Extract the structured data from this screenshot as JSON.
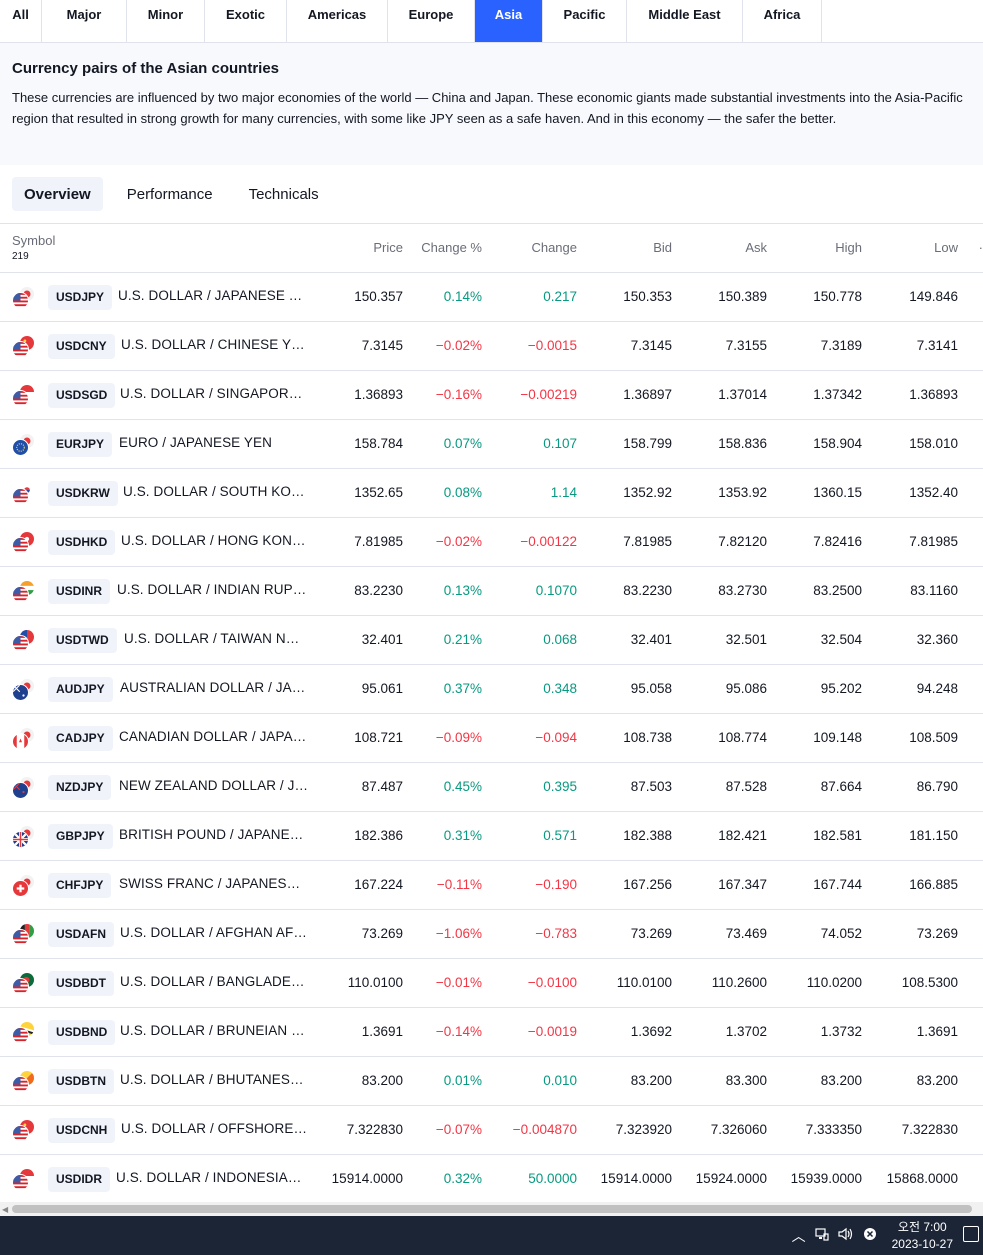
{
  "region_tabs": [
    {
      "label": "All",
      "active": false
    },
    {
      "label": "Major",
      "active": false
    },
    {
      "label": "Minor",
      "active": false
    },
    {
      "label": "Exotic",
      "active": false
    },
    {
      "label": "Americas",
      "active": false
    },
    {
      "label": "Europe",
      "active": false
    },
    {
      "label": "Asia",
      "active": true
    },
    {
      "label": "Pacific",
      "active": false
    },
    {
      "label": "Middle East",
      "active": false
    },
    {
      "label": "Africa",
      "active": false
    }
  ],
  "intro": {
    "title": "Currency pairs of the Asian countries",
    "text": "These currencies are influenced by two major economies of the world — China and Japan. These economic giants made substantial investments into the Asia-Pacific region that resulted in strong growth for many currencies, with some like JPY seen as a safe haven. And in this economy — the safer the better."
  },
  "sub_tabs": [
    {
      "label": "Overview",
      "active": true
    },
    {
      "label": "Performance",
      "active": false
    },
    {
      "label": "Technicals",
      "active": false
    }
  ],
  "table": {
    "headers": {
      "symbol": "Symbol",
      "count": "219",
      "price": "Price",
      "change_pct": "Change %",
      "change": "Change",
      "bid": "Bid",
      "ask": "Ask",
      "high": "High",
      "low": "Low"
    },
    "rows": [
      {
        "ticker": "USDJPY",
        "name": "U.S. DOLLAR / JAPANESE YEN",
        "price": "150.357",
        "change_pct": "0.14%",
        "change": "0.217",
        "bid": "150.353",
        "ask": "150.389",
        "high": "150.778",
        "low": "149.846",
        "dir": "pos",
        "flags": [
          "jp",
          "us"
        ]
      },
      {
        "ticker": "USDCNY",
        "name": "U.S. DOLLAR / CHINESE YUAN",
        "price": "7.3145",
        "change_pct": "−0.02%",
        "change": "−0.0015",
        "bid": "7.3145",
        "ask": "7.3155",
        "high": "7.3189",
        "low": "7.3141",
        "dir": "neg",
        "flags": [
          "cn",
          "us"
        ]
      },
      {
        "ticker": "USDSGD",
        "name": "U.S. DOLLAR / SINGAPORE D...",
        "price": "1.36893",
        "change_pct": "−0.16%",
        "change": "−0.00219",
        "bid": "1.36897",
        "ask": "1.37014",
        "high": "1.37342",
        "low": "1.36893",
        "dir": "neg",
        "flags": [
          "sg",
          "us"
        ]
      },
      {
        "ticker": "EURJPY",
        "name": "EURO / JAPANESE YEN",
        "price": "158.784",
        "change_pct": "0.07%",
        "change": "0.107",
        "bid": "158.799",
        "ask": "158.836",
        "high": "158.904",
        "low": "158.010",
        "dir": "pos",
        "flags": [
          "jp",
          "eu"
        ]
      },
      {
        "ticker": "USDKRW",
        "name": "U.S. DOLLAR / SOUTH KORE...",
        "price": "1352.65",
        "change_pct": "0.08%",
        "change": "1.14",
        "bid": "1352.92",
        "ask": "1353.92",
        "high": "1360.15",
        "low": "1352.40",
        "dir": "pos",
        "flags": [
          "kr",
          "us"
        ]
      },
      {
        "ticker": "USDHKD",
        "name": "U.S. DOLLAR / HONG KONG ...",
        "price": "7.81985",
        "change_pct": "−0.02%",
        "change": "−0.00122",
        "bid": "7.81985",
        "ask": "7.82120",
        "high": "7.82416",
        "low": "7.81985",
        "dir": "neg",
        "flags": [
          "hk",
          "us"
        ]
      },
      {
        "ticker": "USDINR",
        "name": "U.S. DOLLAR / INDIAN RUPEE",
        "price": "83.2230",
        "change_pct": "0.13%",
        "change": "0.1070",
        "bid": "83.2230",
        "ask": "83.2730",
        "high": "83.2500",
        "low": "83.1160",
        "dir": "pos",
        "flags": [
          "in",
          "us"
        ]
      },
      {
        "ticker": "USDTWD",
        "name": "U.S. DOLLAR / TAIWAN NEW...",
        "price": "32.401",
        "change_pct": "0.21%",
        "change": "0.068",
        "bid": "32.401",
        "ask": "32.501",
        "high": "32.504",
        "low": "32.360",
        "dir": "pos",
        "flags": [
          "tw",
          "us"
        ]
      },
      {
        "ticker": "AUDJPY",
        "name": "AUSTRALIAN DOLLAR / JAPA...",
        "price": "95.061",
        "change_pct": "0.37%",
        "change": "0.348",
        "bid": "95.058",
        "ask": "95.086",
        "high": "95.202",
        "low": "94.248",
        "dir": "pos",
        "flags": [
          "jp",
          "au"
        ]
      },
      {
        "ticker": "CADJPY",
        "name": "CANADIAN DOLLAR / JAPANE...",
        "price": "108.721",
        "change_pct": "−0.09%",
        "change": "−0.094",
        "bid": "108.738",
        "ask": "108.774",
        "high": "109.148",
        "low": "108.509",
        "dir": "neg",
        "flags": [
          "jp",
          "ca"
        ]
      },
      {
        "ticker": "NZDJPY",
        "name": "NEW ZEALAND DOLLAR / JA...",
        "price": "87.487",
        "change_pct": "0.45%",
        "change": "0.395",
        "bid": "87.503",
        "ask": "87.528",
        "high": "87.664",
        "low": "86.790",
        "dir": "pos",
        "flags": [
          "jp",
          "nz"
        ]
      },
      {
        "ticker": "GBPJPY",
        "name": "BRITISH POUND / JAPANESE ...",
        "price": "182.386",
        "change_pct": "0.31%",
        "change": "0.571",
        "bid": "182.388",
        "ask": "182.421",
        "high": "182.581",
        "low": "181.150",
        "dir": "pos",
        "flags": [
          "jp",
          "gb"
        ]
      },
      {
        "ticker": "CHFJPY",
        "name": "SWISS FRANC / JAPANESE YEN",
        "price": "167.224",
        "change_pct": "−0.11%",
        "change": "−0.190",
        "bid": "167.256",
        "ask": "167.347",
        "high": "167.744",
        "low": "166.885",
        "dir": "neg",
        "flags": [
          "jp",
          "ch"
        ]
      },
      {
        "ticker": "USDAFN",
        "name": "U.S. DOLLAR / AFGHAN AFG...",
        "price": "73.269",
        "change_pct": "−1.06%",
        "change": "−0.783",
        "bid": "73.269",
        "ask": "73.469",
        "high": "74.052",
        "low": "73.269",
        "dir": "neg",
        "flags": [
          "af",
          "us"
        ]
      },
      {
        "ticker": "USDBDT",
        "name": "U.S. DOLLAR / BANGLADESH...",
        "price": "110.0100",
        "change_pct": "−0.01%",
        "change": "−0.0100",
        "bid": "110.0100",
        "ask": "110.2600",
        "high": "110.0200",
        "low": "108.5300",
        "dir": "neg",
        "flags": [
          "bd",
          "us"
        ]
      },
      {
        "ticker": "USDBND",
        "name": "U.S. DOLLAR / BRUNEIAN D...",
        "price": "1.3691",
        "change_pct": "−0.14%",
        "change": "−0.0019",
        "bid": "1.3692",
        "ask": "1.3702",
        "high": "1.3732",
        "low": "1.3691",
        "dir": "neg",
        "flags": [
          "bn",
          "us"
        ]
      },
      {
        "ticker": "USDBTN",
        "name": "U.S. DOLLAR / BHUTANESE ...",
        "price": "83.200",
        "change_pct": "0.01%",
        "change": "0.010",
        "bid": "83.200",
        "ask": "83.300",
        "high": "83.200",
        "low": "83.200",
        "dir": "pos",
        "flags": [
          "bt",
          "us"
        ]
      },
      {
        "ticker": "USDCNH",
        "name": "U.S. DOLLAR / OFFSHORE C...",
        "price": "7.322830",
        "change_pct": "−0.07%",
        "change": "−0.004870",
        "bid": "7.323920",
        "ask": "7.326060",
        "high": "7.333350",
        "low": "7.322830",
        "dir": "neg",
        "flags": [
          "cn",
          "us"
        ]
      },
      {
        "ticker": "USDIDR",
        "name": "U.S. DOLLAR / INDONESIAN ...",
        "price": "15914.0000",
        "change_pct": "0.32%",
        "change": "50.0000",
        "bid": "15914.0000",
        "ask": "15924.0000",
        "high": "15939.0000",
        "low": "15868.0000",
        "dir": "pos",
        "flags": [
          "id",
          "us"
        ]
      }
    ]
  },
  "taskbar": {
    "time": "오전 7:00",
    "date": "2023-10-27",
    "icons": [
      "chevron-up-icon",
      "network-icon",
      "volume-icon",
      "close-circle-icon",
      "notification-icon"
    ]
  },
  "colors": {
    "accent": "#2962ff",
    "positive": "#089981",
    "negative": "#f23645",
    "taskbar": "#1c2536"
  }
}
